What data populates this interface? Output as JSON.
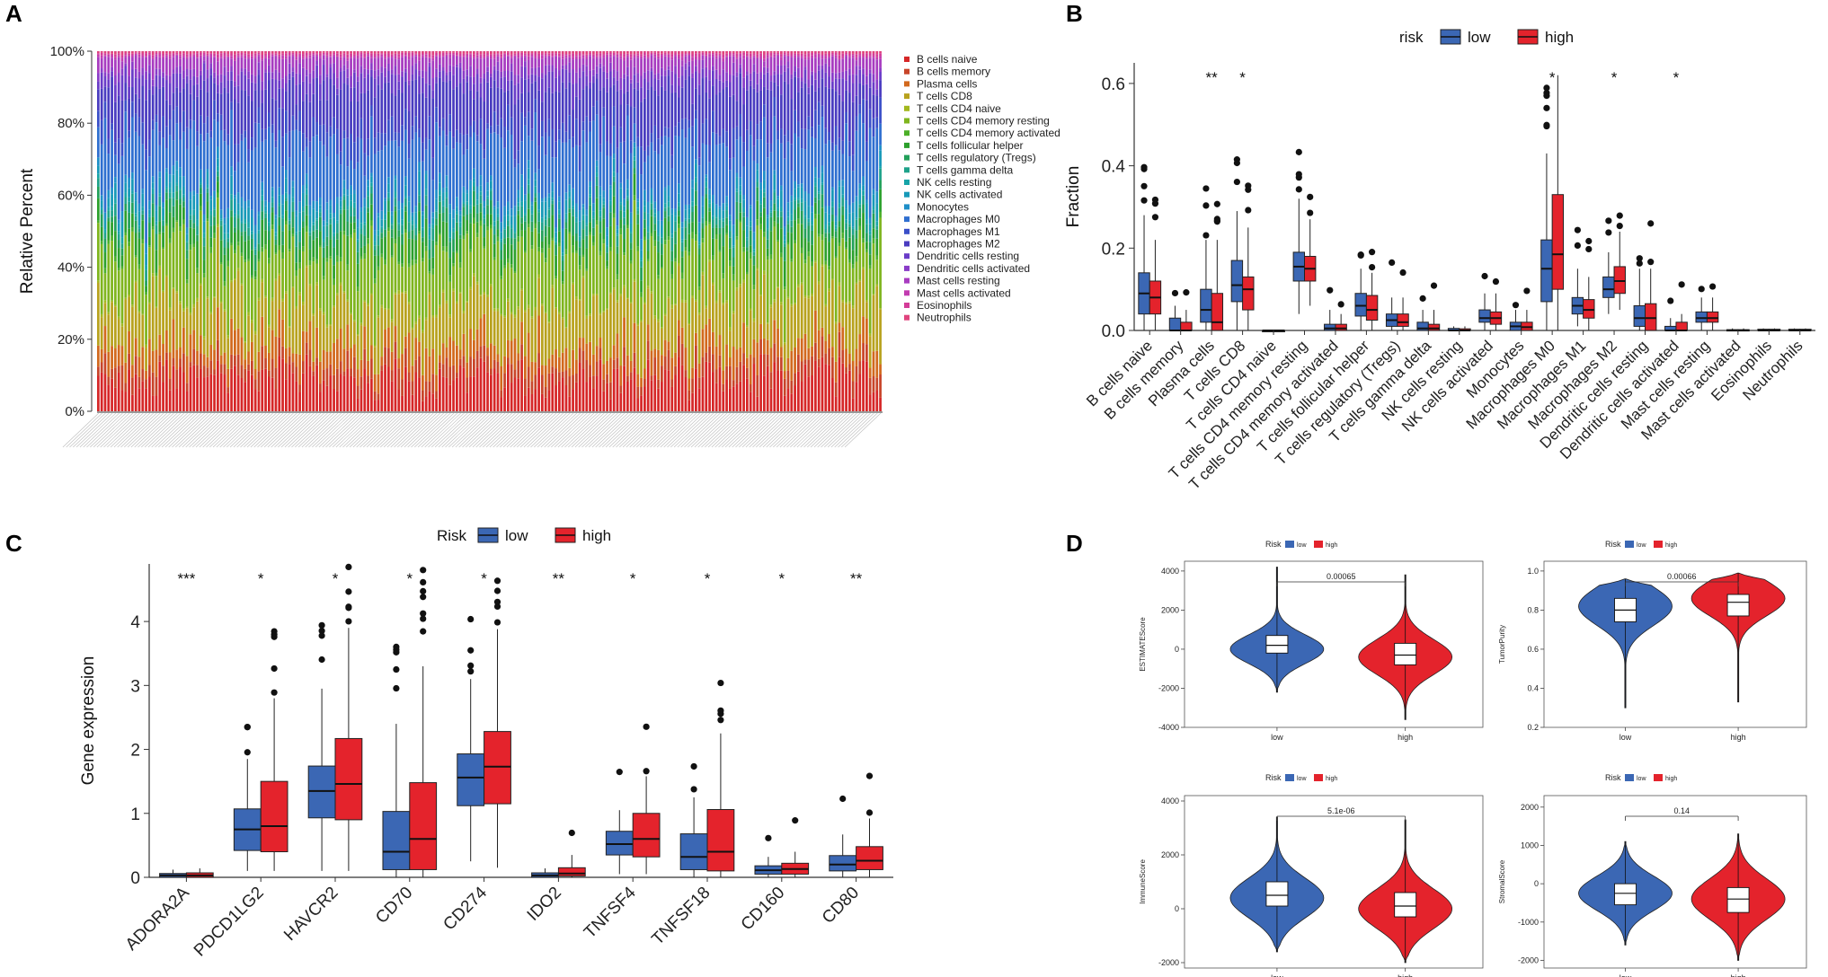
{
  "panels": {
    "a": "A",
    "b": "B",
    "c": "C",
    "d": "D"
  },
  "chart_data": [
    {
      "id": "A",
      "type": "bar",
      "stacked": true,
      "ylabel": "Relative Percent",
      "yticks": [
        "0%",
        "20%",
        "40%",
        "60%",
        "80%",
        "100%"
      ],
      "n_samples": 230,
      "legend": [
        {
          "name": "B cells naive",
          "color": "#d62728"
        },
        {
          "name": "B cells memory",
          "color": "#c8452a"
        },
        {
          "name": "Plasma cells",
          "color": "#d2691e"
        },
        {
          "name": "T cells CD8",
          "color": "#b8a21e"
        },
        {
          "name": "T cells CD4 naive",
          "color": "#a3b81e"
        },
        {
          "name": "T cells CD4 memory resting",
          "color": "#7fb51e"
        },
        {
          "name": "T cells CD4 memory activated",
          "color": "#4caf28"
        },
        {
          "name": "T cells follicular helper",
          "color": "#2ca02c"
        },
        {
          "name": "T cells regulatory (Tregs)",
          "color": "#22a05a"
        },
        {
          "name": "T cells gamma delta",
          "color": "#1ea28a"
        },
        {
          "name": "NK cells resting",
          "color": "#17a4a8"
        },
        {
          "name": "NK cells activated",
          "color": "#1799b8"
        },
        {
          "name": "Monocytes",
          "color": "#1f8fc8"
        },
        {
          "name": "Macrophages M0",
          "color": "#2f6fd0"
        },
        {
          "name": "Macrophages M1",
          "color": "#3a4fc8"
        },
        {
          "name": "Macrophages M2",
          "color": "#4a3cc0"
        },
        {
          "name": "Dendritic cells resting",
          "color": "#6a3cc8"
        },
        {
          "name": "Dendritic cells activated",
          "color": "#8a3cc8"
        },
        {
          "name": "Mast cells resting",
          "color": "#a83cc0"
        },
        {
          "name": "Mast cells activated",
          "color": "#c23cb0"
        },
        {
          "name": "Eosinophils",
          "color": "#d43c98"
        },
        {
          "name": "Neutrophils",
          "color": "#e0447e"
        }
      ],
      "mean_fractions": [
        0.1,
        0.04,
        0.06,
        0.13,
        0.005,
        0.16,
        0.01,
        0.05,
        0.03,
        0.02,
        0.01,
        0.03,
        0.02,
        0.17,
        0.05,
        0.11,
        0.04,
        0.02,
        0.035,
        0.005,
        0.005,
        0.005
      ]
    },
    {
      "id": "B",
      "type": "box",
      "legend_title": "risk",
      "series": [
        {
          "name": "low",
          "color": "#3b67b4"
        },
        {
          "name": "high",
          "color": "#e4232c"
        }
      ],
      "ylabel": "Fraction",
      "ylim": [
        0,
        0.65
      ],
      "yticks": [
        "0.0",
        "0.2",
        "0.4",
        "0.6"
      ],
      "categories": [
        "B cells naive",
        "B cells memory",
        "Plasma cells",
        "T cells CD8",
        "T cells CD4 naive",
        "T cells CD4 memory resting",
        "T cells CD4 memory activated",
        "T cells follicular helper",
        "T cells regulatory (Tregs)",
        "T cells gamma delta",
        "NK cells resting",
        "NK cells activated",
        "Monocytes",
        "Macrophages M0",
        "Macrophages M1",
        "Macrophages M2",
        "Dendritic cells resting",
        "Dendritic cells activated",
        "Mast cells resting",
        "Mast cells activated",
        "Eosinophils",
        "Neutrophils"
      ],
      "significance": [
        "",
        "",
        "**",
        "*",
        "",
        "",
        "",
        "",
        "",
        "",
        "",
        "",
        "",
        "*",
        "",
        "*",
        "",
        "*",
        "",
        "",
        "",
        ""
      ],
      "low": [
        {
          "q1": 0.04,
          "med": 0.09,
          "q3": 0.14,
          "lo": 0.0,
          "hi": 0.28
        },
        {
          "q1": 0.0,
          "med": 0.0,
          "q3": 0.03,
          "lo": 0.0,
          "hi": 0.06
        },
        {
          "q1": 0.02,
          "med": 0.05,
          "q3": 0.1,
          "lo": 0.0,
          "hi": 0.22
        },
        {
          "q1": 0.07,
          "med": 0.11,
          "q3": 0.17,
          "lo": 0.0,
          "hi": 0.29
        },
        {
          "q1": 0.0,
          "med": 0.0,
          "q3": 0.0,
          "lo": 0.0,
          "hi": 0.0
        },
        {
          "q1": 0.12,
          "med": 0.155,
          "q3": 0.19,
          "lo": 0.04,
          "hi": 0.32
        },
        {
          "q1": 0.0,
          "med": 0.005,
          "q3": 0.015,
          "lo": 0.0,
          "hi": 0.05
        },
        {
          "q1": 0.035,
          "med": 0.06,
          "q3": 0.09,
          "lo": 0.0,
          "hi": 0.15
        },
        {
          "q1": 0.01,
          "med": 0.025,
          "q3": 0.04,
          "lo": 0.0,
          "hi": 0.08
        },
        {
          "q1": 0.0,
          "med": 0.005,
          "q3": 0.02,
          "lo": 0.0,
          "hi": 0.05
        },
        {
          "q1": 0.0,
          "med": 0.0,
          "q3": 0.005,
          "lo": 0.0,
          "hi": 0.01
        },
        {
          "q1": 0.02,
          "med": 0.03,
          "q3": 0.05,
          "lo": 0.0,
          "hi": 0.09
        },
        {
          "q1": 0.0,
          "med": 0.01,
          "q3": 0.02,
          "lo": 0.0,
          "hi": 0.05
        },
        {
          "q1": 0.07,
          "med": 0.15,
          "q3": 0.22,
          "lo": 0.0,
          "hi": 0.43
        },
        {
          "q1": 0.04,
          "med": 0.06,
          "q3": 0.08,
          "lo": 0.01,
          "hi": 0.15
        },
        {
          "q1": 0.08,
          "med": 0.1,
          "q3": 0.13,
          "lo": 0.04,
          "hi": 0.19
        },
        {
          "q1": 0.01,
          "med": 0.03,
          "q3": 0.06,
          "lo": 0.0,
          "hi": 0.15
        },
        {
          "q1": 0.0,
          "med": 0.0,
          "q3": 0.01,
          "lo": 0.0,
          "hi": 0.03
        },
        {
          "q1": 0.02,
          "med": 0.03,
          "q3": 0.045,
          "lo": 0.0,
          "hi": 0.08
        },
        {
          "q1": 0.0,
          "med": 0.0,
          "q3": 0.002,
          "lo": 0.0,
          "hi": 0.005
        },
        {
          "q1": 0.0,
          "med": 0.0,
          "q3": 0.003,
          "lo": 0.0,
          "hi": 0.005
        },
        {
          "q1": 0.0,
          "med": 0.0,
          "q3": 0.003,
          "lo": 0.0,
          "hi": 0.005
        }
      ],
      "high": [
        {
          "q1": 0.04,
          "med": 0.08,
          "q3": 0.12,
          "lo": 0.0,
          "hi": 0.22
        },
        {
          "q1": 0.0,
          "med": 0.0,
          "q3": 0.02,
          "lo": 0.0,
          "hi": 0.05
        },
        {
          "q1": 0.0,
          "med": 0.02,
          "q3": 0.09,
          "lo": 0.0,
          "hi": 0.22
        },
        {
          "q1": 0.05,
          "med": 0.1,
          "q3": 0.13,
          "lo": 0.0,
          "hi": 0.25
        },
        {
          "q1": 0.0,
          "med": 0.0,
          "q3": 0.0,
          "lo": 0.0,
          "hi": 0.0
        },
        {
          "q1": 0.12,
          "med": 0.15,
          "q3": 0.18,
          "lo": 0.06,
          "hi": 0.27
        },
        {
          "q1": 0.0,
          "med": 0.005,
          "q3": 0.015,
          "lo": 0.0,
          "hi": 0.04
        },
        {
          "q1": 0.025,
          "med": 0.05,
          "q3": 0.085,
          "lo": 0.0,
          "hi": 0.14
        },
        {
          "q1": 0.01,
          "med": 0.02,
          "q3": 0.04,
          "lo": 0.0,
          "hi": 0.08
        },
        {
          "q1": 0.0,
          "med": 0.005,
          "q3": 0.015,
          "lo": 0.0,
          "hi": 0.05
        },
        {
          "q1": 0.0,
          "med": 0.0,
          "q3": 0.004,
          "lo": 0.0,
          "hi": 0.01
        },
        {
          "q1": 0.015,
          "med": 0.03,
          "q3": 0.045,
          "lo": 0.0,
          "hi": 0.09
        },
        {
          "q1": 0.0,
          "med": 0.008,
          "q3": 0.02,
          "lo": 0.0,
          "hi": 0.05
        },
        {
          "q1": 0.1,
          "med": 0.185,
          "q3": 0.33,
          "lo": 0.0,
          "hi": 0.62
        },
        {
          "q1": 0.03,
          "med": 0.05,
          "q3": 0.075,
          "lo": 0.0,
          "hi": 0.13
        },
        {
          "q1": 0.09,
          "med": 0.12,
          "q3": 0.155,
          "lo": 0.05,
          "hi": 0.24
        },
        {
          "q1": 0.0,
          "med": 0.03,
          "q3": 0.065,
          "lo": 0.0,
          "hi": 0.15
        },
        {
          "q1": 0.0,
          "med": 0.0,
          "q3": 0.02,
          "lo": 0.0,
          "hi": 0.04
        },
        {
          "q1": 0.02,
          "med": 0.03,
          "q3": 0.045,
          "lo": 0.0,
          "hi": 0.08
        },
        {
          "q1": 0.0,
          "med": 0.0,
          "q3": 0.002,
          "lo": 0.0,
          "hi": 0.005
        },
        {
          "q1": 0.0,
          "med": 0.0,
          "q3": 0.003,
          "lo": 0.0,
          "hi": 0.005
        },
        {
          "q1": 0.0,
          "med": 0.0,
          "q3": 0.003,
          "lo": 0.0,
          "hi": 0.005
        }
      ]
    },
    {
      "id": "C",
      "type": "box",
      "legend_title": "Risk",
      "series": [
        {
          "name": "low",
          "color": "#3b67b4"
        },
        {
          "name": "high",
          "color": "#e4232c"
        }
      ],
      "ylabel": "Gene expression",
      "ylim": [
        0,
        4.9
      ],
      "yticks": [
        "0",
        "1",
        "2",
        "3",
        "4"
      ],
      "categories": [
        "ADORA2A",
        "PDCD1LG2",
        "HAVCR2",
        "CD70",
        "CD274",
        "IDO2",
        "TNFSF4",
        "TNFSF18",
        "CD160",
        "CD80"
      ],
      "significance": [
        "***",
        "*",
        "*",
        "*",
        "*",
        "**",
        "*",
        "*",
        "*",
        "**"
      ],
      "low": [
        {
          "q1": 0.0,
          "med": 0.03,
          "q3": 0.06,
          "lo": 0.0,
          "hi": 0.12
        },
        {
          "q1": 0.42,
          "med": 0.75,
          "q3": 1.07,
          "lo": 0.1,
          "hi": 1.85
        },
        {
          "q1": 0.93,
          "med": 1.35,
          "q3": 1.74,
          "lo": 0.1,
          "hi": 2.95
        },
        {
          "q1": 0.12,
          "med": 0.4,
          "q3": 1.03,
          "lo": 0.0,
          "hi": 2.4
        },
        {
          "q1": 1.12,
          "med": 1.56,
          "q3": 1.93,
          "lo": 0.25,
          "hi": 3.1
        },
        {
          "q1": 0.0,
          "med": 0.03,
          "q3": 0.07,
          "lo": 0.0,
          "hi": 0.14
        },
        {
          "q1": 0.35,
          "med": 0.52,
          "q3": 0.72,
          "lo": 0.05,
          "hi": 1.05
        },
        {
          "q1": 0.12,
          "med": 0.32,
          "q3": 0.68,
          "lo": 0.0,
          "hi": 1.25
        },
        {
          "q1": 0.05,
          "med": 0.11,
          "q3": 0.18,
          "lo": 0.0,
          "hi": 0.32
        },
        {
          "q1": 0.1,
          "med": 0.2,
          "q3": 0.34,
          "lo": 0.0,
          "hi": 0.67
        }
      ],
      "high": [
        {
          "q1": 0.0,
          "med": 0.03,
          "q3": 0.07,
          "lo": 0.0,
          "hi": 0.14
        },
        {
          "q1": 0.4,
          "med": 0.8,
          "q3": 1.5,
          "lo": 0.1,
          "hi": 2.8
        },
        {
          "q1": 0.9,
          "med": 1.46,
          "q3": 2.17,
          "lo": 0.1,
          "hi": 3.9
        },
        {
          "q1": 0.12,
          "med": 0.6,
          "q3": 1.48,
          "lo": 0.0,
          "hi": 3.3
        },
        {
          "q1": 1.15,
          "med": 1.73,
          "q3": 2.28,
          "lo": 0.15,
          "hi": 3.88
        },
        {
          "q1": 0.02,
          "med": 0.06,
          "q3": 0.15,
          "lo": 0.0,
          "hi": 0.35
        },
        {
          "q1": 0.32,
          "med": 0.6,
          "q3": 1.0,
          "lo": 0.05,
          "hi": 1.58
        },
        {
          "q1": 0.1,
          "med": 0.4,
          "q3": 1.06,
          "lo": 0.0,
          "hi": 2.25
        },
        {
          "q1": 0.05,
          "med": 0.13,
          "q3": 0.22,
          "lo": 0.0,
          "hi": 0.4
        },
        {
          "q1": 0.12,
          "med": 0.26,
          "q3": 0.48,
          "lo": 0.0,
          "hi": 0.92
        }
      ]
    },
    {
      "id": "D",
      "type": "violin",
      "legend_title": "Risk",
      "series": [
        {
          "name": "low",
          "color": "#3b67b4"
        },
        {
          "name": "high",
          "color": "#e4232c"
        }
      ],
      "subplots": [
        {
          "ylabel": "ESTIMATEScore",
          "ylim": [
            -4000,
            4500
          ],
          "yticks": [
            "4000",
            "2000",
            "0",
            "-2000",
            "-4000"
          ],
          "ytick_values": [
            4000,
            2000,
            0,
            -2000,
            -4000
          ],
          "p": "0.00065",
          "low": {
            "lo": -2200,
            "q1": -200,
            "med": 200,
            "q3": 700,
            "hi": 4200,
            "peak": 0
          },
          "high": {
            "lo": -3600,
            "q1": -800,
            "med": -300,
            "q3": 300,
            "hi": 3800,
            "peak": -400
          }
        },
        {
          "ylabel": "TumorPurity",
          "ylim": [
            0.2,
            1.05
          ],
          "yticks": [
            "1.0",
            "0.8",
            "0.6",
            "0.4",
            "0.2"
          ],
          "ytick_values": [
            1.0,
            0.8,
            0.6,
            0.4,
            0.2
          ],
          "p": "0.00066",
          "low": {
            "lo": 0.3,
            "q1": 0.74,
            "med": 0.8,
            "q3": 0.86,
            "hi": 0.96,
            "peak": 0.82
          },
          "high": {
            "lo": 0.33,
            "q1": 0.77,
            "med": 0.84,
            "q3": 0.88,
            "hi": 0.99,
            "peak": 0.86
          }
        },
        {
          "ylabel": "ImmuneScore",
          "ylim": [
            -2200,
            4200
          ],
          "yticks": [
            "4000",
            "2000",
            "0",
            "-2000"
          ],
          "ytick_values": [
            4000,
            2000,
            0,
            -2000
          ],
          "p": "5.1e-06",
          "low": {
            "lo": -1600,
            "q1": 100,
            "med": 500,
            "q3": 1000,
            "hi": 3400,
            "peak": 400
          },
          "high": {
            "lo": -2000,
            "q1": -300,
            "med": 100,
            "q3": 600,
            "hi": 3300,
            "peak": 0
          }
        },
        {
          "ylabel": "StromalScore",
          "ylim": [
            -2200,
            2300
          ],
          "yticks": [
            "2000",
            "1000",
            "0",
            "-1000",
            "-2000"
          ],
          "ytick_values": [
            2000,
            1000,
            0,
            -1000,
            -2000
          ],
          "p": "0.14",
          "low": {
            "lo": -1600,
            "q1": -550,
            "med": -250,
            "q3": 0,
            "hi": 1100,
            "peak": -250
          },
          "high": {
            "lo": -2000,
            "q1": -750,
            "med": -400,
            "q3": -100,
            "hi": 1300,
            "peak": -400
          }
        }
      ],
      "xcategories": [
        "low",
        "high"
      ]
    }
  ]
}
